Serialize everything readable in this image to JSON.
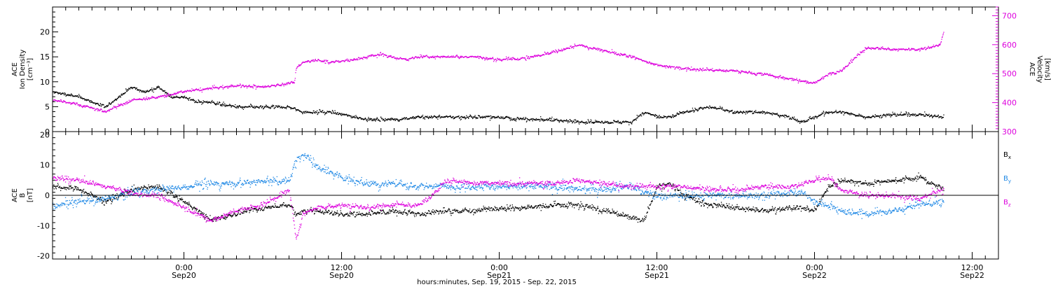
{
  "colors": {
    "black": "#000000",
    "magenta": "#dd00dd",
    "blue": "#1e88e5",
    "frame": "#000000"
  },
  "xaxis": {
    "title": "hours:minutes, Sep. 19, 2015 - Sep. 22, 2015",
    "ticks": [
      {
        "t": 24,
        "top": "0:00",
        "bottom": "Sep20"
      },
      {
        "t": 36,
        "top": "12:00",
        "bottom": "Sep20"
      },
      {
        "t": 48,
        "top": "0:00",
        "bottom": "Sep21"
      },
      {
        "t": 60,
        "top": "12:00",
        "bottom": "Sep21"
      },
      {
        "t": 72,
        "top": "0:00",
        "bottom": "Sep22"
      },
      {
        "t": 84,
        "top": "12:00",
        "bottom": "Sep22"
      }
    ]
  },
  "chart_data": [
    {
      "type": "scatter",
      "panel": "plasma",
      "left_axis": {
        "label_lines": [
          "ACE",
          "Ion Density",
          "[cm⁻³]"
        ],
        "ylim": [
          0,
          25
        ],
        "ticks": [
          0,
          5,
          10,
          15,
          20
        ]
      },
      "right_axis": {
        "label_lines": [
          "ACE",
          "Velocity",
          "[km/s]"
        ],
        "ylim": [
          300,
          730
        ],
        "ticks": [
          300,
          400,
          500,
          600,
          700
        ],
        "color": "#dd00dd"
      },
      "xlim_hours": [
        14,
        86
      ],
      "series": [
        {
          "axis": "left",
          "color": "#000000",
          "scatter": 0.9,
          "x": [
            14,
            16,
            18,
            19,
            20,
            21,
            22,
            23,
            24,
            25,
            26,
            28,
            30,
            32,
            33,
            33.5,
            35,
            36,
            37,
            38,
            40,
            42,
            44,
            46,
            48,
            50,
            52,
            54,
            57,
            58,
            59,
            60,
            61,
            62,
            64,
            66,
            68,
            70,
            71,
            72,
            73,
            74,
            76,
            78,
            80,
            81.8
          ],
          "y": [
            8,
            7,
            5,
            7,
            9,
            8,
            9,
            7,
            7,
            6,
            6,
            5,
            5,
            5,
            4,
            4,
            4,
            3.5,
            3,
            2.5,
            2.5,
            3,
            3,
            3,
            3,
            2.5,
            2.5,
            2,
            2,
            2,
            4,
            3,
            3,
            4,
            5,
            4,
            4,
            3,
            2,
            3,
            4,
            4,
            3,
            3.5,
            3.5,
            3
          ]
        },
        {
          "axis": "right",
          "color": "#dd00dd",
          "scatter": 14,
          "x": [
            14,
            16,
            18,
            20,
            22,
            24,
            26,
            28,
            30,
            32.4,
            32.5,
            33,
            34,
            35,
            36,
            37,
            38,
            39,
            40,
            41,
            42,
            44,
            46,
            48,
            50,
            52,
            54,
            56,
            58,
            60,
            62,
            64,
            66,
            68,
            70,
            71,
            72,
            73,
            74,
            75,
            76,
            78,
            80,
            81.5,
            81.8
          ],
          "y": [
            410,
            395,
            370,
            410,
            420,
            440,
            450,
            460,
            455,
            470,
            520,
            540,
            550,
            540,
            545,
            550,
            560,
            570,
            555,
            550,
            560,
            560,
            560,
            550,
            555,
            575,
            600,
            580,
            560,
            530,
            520,
            515,
            510,
            500,
            485,
            475,
            470,
            500,
            510,
            555,
            590,
            585,
            585,
            600,
            650
          ]
        }
      ]
    },
    {
      "type": "scatter",
      "panel": "magnetic-field",
      "left_axis": {
        "label_lines": [
          "ACE",
          "B",
          "[nT]"
        ],
        "ylim": [
          -21,
          21
        ],
        "ticks": [
          -20,
          -10,
          0,
          10,
          20
        ]
      },
      "zero_line": true,
      "xlim_hours": [
        14,
        86
      ],
      "legend": [
        {
          "text": "B",
          "sub": "x",
          "color": "#000000"
        },
        {
          "text": "B",
          "sub": "y",
          "color": "#1e88e5"
        },
        {
          "text": "B",
          "sub": "z",
          "color": "#dd00dd"
        }
      ],
      "series": [
        {
          "name": "Bx",
          "color": "#000000",
          "scatter": 2.5,
          "x": [
            14,
            16,
            18,
            20,
            22,
            24,
            26,
            28,
            30,
            32,
            32.5,
            33,
            34,
            36,
            38,
            40,
            42,
            44,
            46,
            48,
            50,
            52,
            54,
            56,
            58,
            59,
            60,
            61,
            62,
            64,
            66,
            68,
            70,
            71,
            72,
            73,
            74,
            76,
            78,
            80,
            81.8
          ],
          "y": [
            3,
            2,
            -2,
            2,
            3,
            -2,
            -8,
            -6,
            -4,
            -3,
            -6,
            -5,
            -5,
            -6,
            -6,
            -5,
            -6,
            -5,
            -5,
            -4,
            -4,
            -3,
            -3,
            -5,
            -7,
            -8,
            3,
            4,
            0,
            -3,
            -4,
            -5,
            -4,
            -4,
            -5,
            3,
            5,
            4,
            5,
            6,
            2
          ]
        },
        {
          "name": "By",
          "color": "#1e88e5",
          "scatter": 3.5,
          "x": [
            14,
            16,
            18,
            20,
            22,
            24,
            26,
            28,
            30,
            32,
            32.5,
            33,
            34,
            35,
            36,
            37,
            38,
            40,
            42,
            44,
            46,
            48,
            50,
            52,
            54,
            56,
            58,
            60,
            62,
            64,
            66,
            68,
            70,
            71,
            72,
            73,
            74,
            76,
            78,
            80,
            81.8
          ],
          "y": [
            -3,
            -2,
            -1,
            1,
            2,
            3,
            4,
            4,
            5,
            5,
            12,
            14,
            10,
            8,
            6,
            5,
            4,
            4,
            3,
            3,
            3,
            3,
            3,
            3,
            2,
            2,
            3,
            0,
            0,
            0,
            0,
            0,
            1,
            1,
            -2,
            -3,
            -5,
            -6,
            -5,
            -3,
            -2
          ]
        },
        {
          "name": "Bz",
          "color": "#dd00dd",
          "scatter": 2.5,
          "x": [
            14,
            16,
            18,
            20,
            22,
            24,
            26,
            28,
            30,
            32,
            32.5,
            33,
            34,
            36,
            38,
            40,
            42,
            44,
            46,
            48,
            50,
            52,
            54,
            56,
            58,
            60,
            62,
            64,
            66,
            68,
            70,
            71,
            72,
            73,
            74,
            76,
            78,
            80,
            81.8
          ],
          "y": [
            6,
            5,
            3,
            1,
            0,
            -4,
            -8,
            -5,
            -3,
            2,
            -15,
            -6,
            -4,
            -3,
            -4,
            -3,
            -3,
            5,
            4,
            4,
            4,
            4,
            5,
            4,
            3,
            3,
            3,
            2,
            2,
            3,
            3,
            4,
            5,
            6,
            2,
            0,
            0,
            -1,
            2
          ]
        }
      ]
    }
  ]
}
